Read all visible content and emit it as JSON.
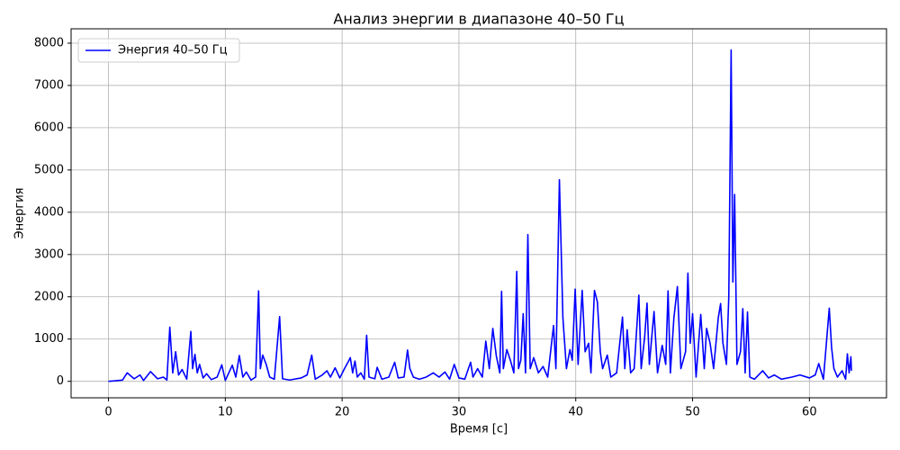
{
  "chart_data": {
    "type": "line",
    "title": "Анализ энергии в диапазоне 40–50 Гц",
    "x_label": "Время [с]",
    "y_label": "Энергия",
    "x": [
      0,
      0.5,
      1.2,
      1.6,
      2.2,
      2.7,
      3.0,
      3.6,
      4.2,
      4.7,
      5.0,
      5.25,
      5.5,
      5.75,
      6.0,
      6.3,
      6.7,
      7.05,
      7.2,
      7.4,
      7.6,
      7.8,
      8.1,
      8.4,
      8.8,
      9.3,
      9.7,
      10.0,
      10.6,
      10.9,
      11.2,
      11.5,
      11.8,
      12.2,
      12.6,
      12.85,
      13.0,
      13.2,
      13.5,
      13.8,
      14.2,
      14.65,
      14.9,
      15.5,
      16.5,
      17.0,
      17.4,
      17.7,
      18.3,
      18.7,
      19.0,
      19.4,
      19.8,
      20.2,
      20.5,
      20.7,
      20.9,
      21.1,
      21.3,
      21.6,
      21.9,
      22.1,
      22.3,
      22.8,
      23.0,
      23.4,
      24.0,
      24.5,
      24.8,
      25.3,
      25.6,
      25.8,
      26.1,
      26.6,
      27.2,
      27.8,
      28.3,
      28.8,
      29.2,
      29.6,
      30.0,
      30.5,
      31.0,
      31.2,
      31.6,
      32.0,
      32.3,
      32.6,
      32.9,
      33.2,
      33.5,
      33.65,
      33.8,
      34.1,
      34.4,
      34.7,
      34.95,
      35.1,
      35.3,
      35.5,
      35.7,
      35.9,
      36.1,
      36.4,
      36.8,
      37.2,
      37.6,
      38.1,
      38.3,
      38.6,
      38.9,
      39.2,
      39.5,
      39.7,
      39.95,
      40.2,
      40.55,
      40.8,
      41.1,
      41.3,
      41.6,
      41.85,
      42.1,
      42.3,
      42.7,
      43.0,
      43.5,
      44.0,
      44.2,
      44.4,
      44.7,
      45.0,
      45.4,
      45.6,
      45.9,
      46.1,
      46.3,
      46.7,
      47.0,
      47.4,
      47.7,
      47.9,
      48.1,
      48.4,
      48.7,
      49.0,
      49.4,
      49.6,
      49.8,
      50.0,
      50.3,
      50.7,
      51.0,
      51.2,
      51.5,
      51.8,
      52.2,
      52.4,
      52.6,
      52.9,
      53.1,
      53.3,
      53.45,
      53.6,
      53.8,
      54.1,
      54.3,
      54.5,
      54.7,
      54.9,
      55.3,
      56.0,
      56.5,
      57.0,
      57.6,
      58.5,
      59.2,
      60.0,
      60.5,
      60.8,
      61.2,
      61.7,
      61.9,
      62.1,
      62.4,
      62.8,
      63.1,
      63.25,
      63.4,
      63.55,
      63.6
    ],
    "series": [
      {
        "name": "Энергия 40–50 Гц",
        "color": "#0000ff",
        "values": [
          0,
          10,
          30,
          200,
          60,
          150,
          20,
          230,
          60,
          100,
          30,
          1280,
          200,
          700,
          150,
          280,
          50,
          1180,
          300,
          640,
          200,
          400,
          80,
          180,
          40,
          100,
          390,
          20,
          380,
          100,
          610,
          100,
          220,
          30,
          100,
          2140,
          300,
          620,
          400,
          100,
          50,
          1530,
          60,
          30,
          80,
          150,
          620,
          50,
          150,
          250,
          100,
          320,
          80,
          300,
          450,
          560,
          200,
          480,
          100,
          200,
          50,
          1090,
          100,
          60,
          330,
          50,
          100,
          450,
          80,
          100,
          740,
          300,
          100,
          50,
          100,
          200,
          100,
          220,
          50,
          400,
          80,
          50,
          450,
          100,
          300,
          100,
          950,
          300,
          1250,
          600,
          200,
          2130,
          300,
          750,
          500,
          200,
          2600,
          300,
          500,
          1600,
          200,
          3470,
          300,
          560,
          200,
          350,
          100,
          1320,
          300,
          4770,
          1500,
          300,
          750,
          500,
          2180,
          400,
          2150,
          700,
          900,
          200,
          2150,
          1880,
          700,
          300,
          620,
          100,
          200,
          1520,
          300,
          1220,
          200,
          300,
          2040,
          300,
          1050,
          1850,
          400,
          1650,
          200,
          850,
          400,
          2140,
          200,
          1500,
          2240,
          300,
          700,
          2560,
          900,
          1600,
          100,
          1580,
          300,
          1250,
          900,
          300,
          1500,
          1840,
          900,
          400,
          2000,
          7840,
          2350,
          4420,
          400,
          700,
          1720,
          200,
          1640,
          100,
          50,
          250,
          80,
          150,
          50,
          100,
          150,
          80,
          150,
          420,
          50,
          1730,
          800,
          300,
          100,
          250,
          50,
          650,
          200,
          580,
          250
        ]
      }
    ],
    "xlim": [
      -3.2,
      66.6
    ],
    "xticks": [
      0,
      10,
      20,
      30,
      40,
      50,
      60
    ],
    "ylim": [
      -390,
      8340
    ],
    "yticks": [
      0,
      1000,
      2000,
      3000,
      4000,
      5000,
      6000,
      7000,
      8000
    ],
    "grid": true,
    "legend": "upper left"
  }
}
